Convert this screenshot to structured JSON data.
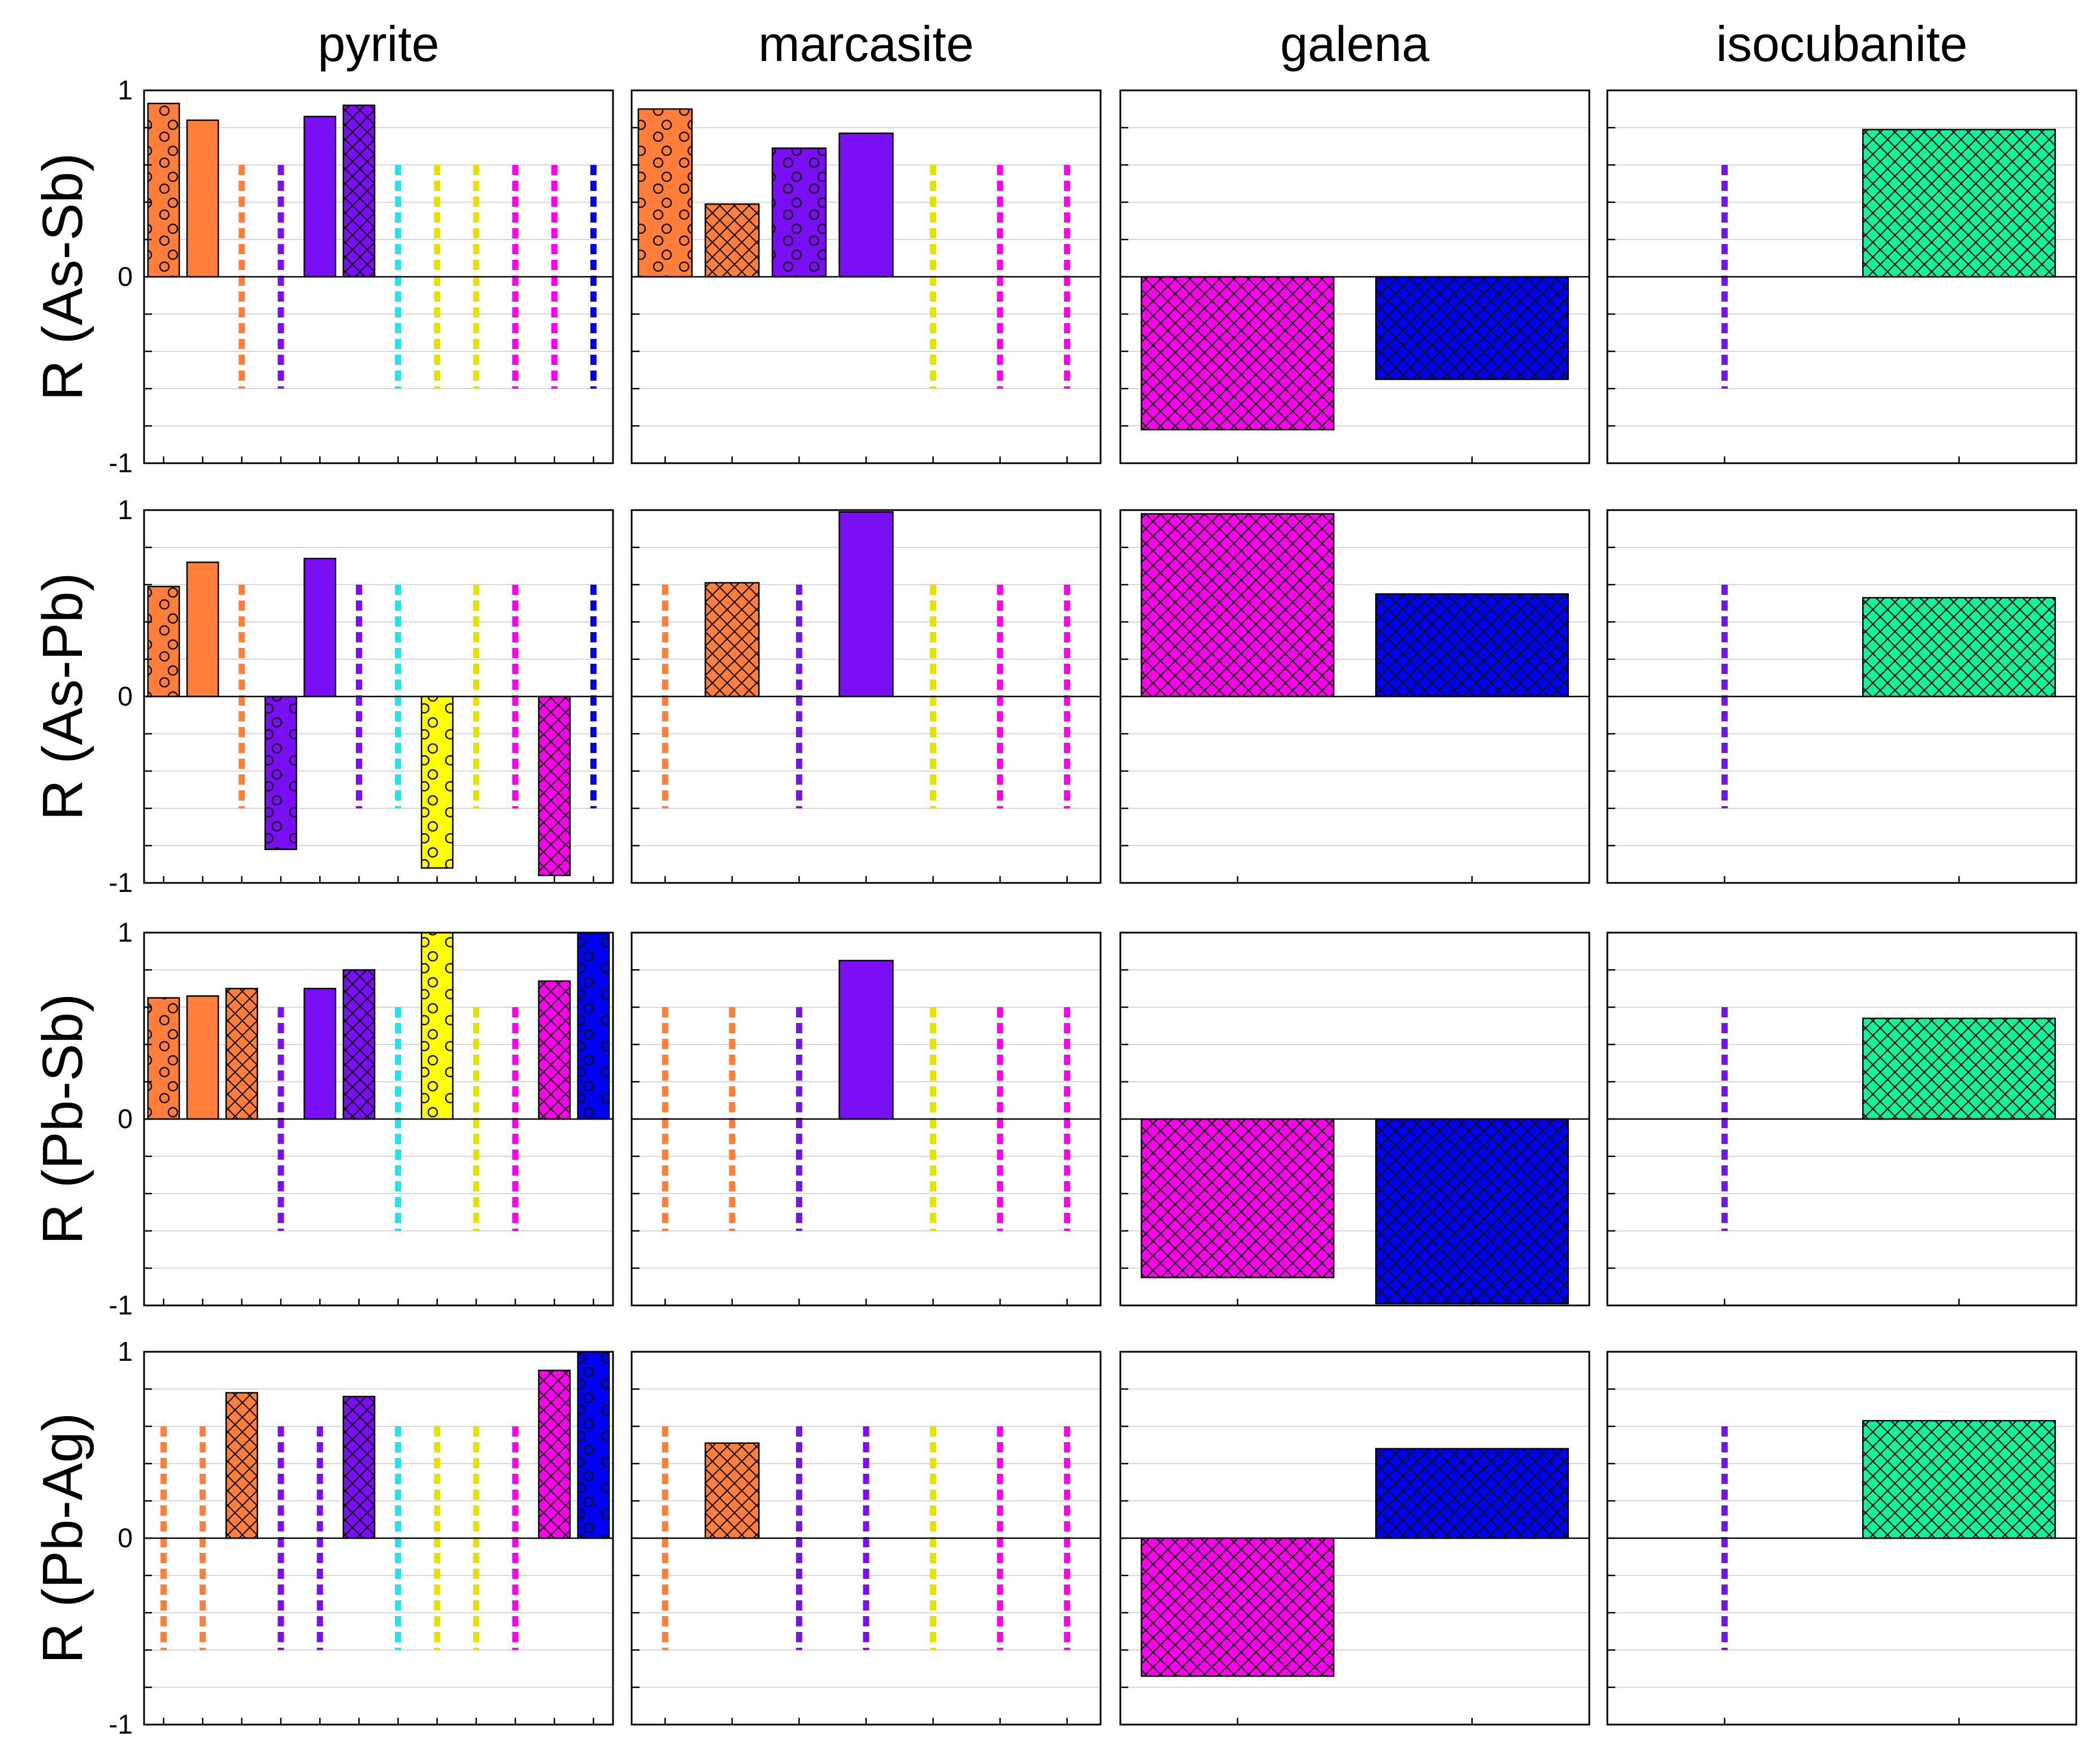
{
  "colors": {
    "orange": "#ff7f3a",
    "purple": "#7a0ef5",
    "cyan": "#19e8f0",
    "yellow": "#e8e000",
    "yellow_fill": "#ffff00",
    "magenta": "#ff00ee",
    "blue": "#0000f5",
    "green": "#12f29a"
  },
  "chart_data": {
    "type": "bar",
    "title": "",
    "ylim": [
      -1,
      1
    ],
    "grid": "horizontal, every 0.2",
    "column_titles": [
      "pyrite",
      "marcasite",
      "galena",
      "isocubanite"
    ],
    "row_labels": [
      "R (As-Sb)",
      "R (As-Pb)",
      "R (Pb-Sb)",
      "R (Pb-Ag)"
    ],
    "y_tick_labels": [
      "1",
      "0",
      "-1"
    ],
    "y_ticks": [
      1,
      0,
      -1
    ],
    "slots_per_column": [
      12,
      7,
      2,
      2
    ],
    "note": "each entry is [slot_index, color, pattern, value]; pattern 'dash' marks a non-significant correlation (dashed line from -0.6 to 0.6)",
    "panels": [
      [
        [
          [
            0,
            "orange",
            "dots",
            0.93
          ],
          [
            1,
            "orange",
            "solid",
            0.84
          ],
          [
            2,
            "orange",
            "dash",
            0
          ],
          [
            3,
            "purple",
            "dash",
            0
          ],
          [
            4,
            "purple",
            "solid",
            0.86
          ],
          [
            5,
            "purple",
            "hatch",
            0.92
          ],
          [
            6,
            "cyan",
            "dash",
            0
          ],
          [
            7,
            "yellow",
            "dash",
            0
          ],
          [
            8,
            "yellow",
            "dash",
            0
          ],
          [
            9,
            "magenta",
            "dash",
            0
          ],
          [
            10,
            "magenta",
            "dash",
            0
          ],
          [
            11,
            "blue",
            "dash",
            0
          ]
        ],
        [
          [
            0,
            "orange",
            "dots",
            0.9
          ],
          [
            1,
            "orange",
            "hatch",
            0.39
          ],
          [
            2,
            "purple",
            "dots",
            0.69
          ],
          [
            3,
            "purple",
            "solid",
            0.77
          ],
          [
            4,
            "yellow",
            "dash",
            0
          ],
          [
            5,
            "magenta",
            "dash",
            0
          ],
          [
            6,
            "magenta",
            "dash",
            0
          ]
        ],
        [
          [
            0,
            "magenta",
            "hatch",
            -0.82
          ],
          [
            1,
            "blue",
            "hatch",
            -0.55
          ]
        ],
        [
          [
            0,
            "purple",
            "dash",
            0
          ],
          [
            1,
            "green",
            "hatch",
            0.79
          ]
        ]
      ],
      [
        [
          [
            0,
            "orange",
            "dots",
            0.59
          ],
          [
            1,
            "orange",
            "solid",
            0.72
          ],
          [
            2,
            "orange",
            "dash",
            0
          ],
          [
            3,
            "purple",
            "dots",
            -0.82
          ],
          [
            4,
            "purple",
            "solid",
            0.74
          ],
          [
            5,
            "purple",
            "dash",
            0
          ],
          [
            6,
            "cyan",
            "dash",
            0
          ],
          [
            7,
            "yellow",
            "dots",
            -0.92
          ],
          [
            8,
            "yellow",
            "dash",
            0
          ],
          [
            9,
            "magenta",
            "dash",
            0
          ],
          [
            10,
            "magenta",
            "hatch",
            -0.96
          ],
          [
            11,
            "blue",
            "dash",
            0
          ]
        ],
        [
          [
            0,
            "orange",
            "dash",
            0
          ],
          [
            1,
            "orange",
            "hatch",
            0.61
          ],
          [
            2,
            "purple",
            "dash",
            0
          ],
          [
            3,
            "purple",
            "solid",
            0.99
          ],
          [
            4,
            "yellow",
            "dash",
            0
          ],
          [
            5,
            "magenta",
            "dash",
            0
          ],
          [
            6,
            "magenta",
            "dash",
            0
          ]
        ],
        [
          [
            0,
            "magenta",
            "hatch",
            0.98
          ],
          [
            1,
            "blue",
            "hatch",
            0.55
          ]
        ],
        [
          [
            0,
            "purple",
            "dash",
            0
          ],
          [
            1,
            "green",
            "hatch",
            0.53
          ]
        ]
      ],
      [
        [
          [
            0,
            "orange",
            "dots",
            0.65
          ],
          [
            1,
            "orange",
            "solid",
            0.66
          ],
          [
            2,
            "orange",
            "hatch",
            0.7
          ],
          [
            3,
            "purple",
            "dash",
            0
          ],
          [
            4,
            "purple",
            "solid",
            0.7
          ],
          [
            5,
            "purple",
            "hatch",
            0.8
          ],
          [
            6,
            "cyan",
            "dash",
            0
          ],
          [
            7,
            "yellow",
            "dots",
            1.0
          ],
          [
            8,
            "yellow",
            "dash",
            0
          ],
          [
            9,
            "magenta",
            "dash",
            0
          ],
          [
            10,
            "magenta",
            "hatch",
            0.74
          ],
          [
            11,
            "blue",
            "dots",
            1.0
          ]
        ],
        [
          [
            0,
            "orange",
            "dash",
            0
          ],
          [
            1,
            "orange",
            "dash",
            0
          ],
          [
            2,
            "purple",
            "dash",
            0
          ],
          [
            3,
            "purple",
            "solid",
            0.85
          ],
          [
            4,
            "yellow",
            "dash",
            0
          ],
          [
            5,
            "magenta",
            "dash",
            0
          ],
          [
            6,
            "magenta",
            "dash",
            0
          ]
        ],
        [
          [
            0,
            "magenta",
            "hatch",
            -0.85
          ],
          [
            1,
            "blue",
            "hatch",
            -0.99
          ]
        ],
        [
          [
            0,
            "purple",
            "dash",
            0
          ],
          [
            1,
            "green",
            "hatch",
            0.54
          ]
        ]
      ],
      [
        [
          [
            0,
            "orange",
            "dash",
            0
          ],
          [
            1,
            "orange",
            "dash",
            0
          ],
          [
            2,
            "orange",
            "hatch",
            0.78
          ],
          [
            3,
            "purple",
            "dash",
            0
          ],
          [
            4,
            "purple",
            "dash",
            0
          ],
          [
            5,
            "purple",
            "hatch",
            0.76
          ],
          [
            6,
            "cyan",
            "dash",
            0
          ],
          [
            7,
            "yellow",
            "dash",
            0
          ],
          [
            8,
            "yellow",
            "dash",
            0
          ],
          [
            9,
            "magenta",
            "dash",
            0
          ],
          [
            10,
            "magenta",
            "hatch",
            0.9
          ],
          [
            11,
            "blue",
            "dots",
            1.0
          ]
        ],
        [
          [
            0,
            "orange",
            "dash",
            0
          ],
          [
            1,
            "orange",
            "hatch",
            0.51
          ],
          [
            2,
            "purple",
            "dash",
            0
          ],
          [
            3,
            "purple",
            "dash",
            0
          ],
          [
            4,
            "yellow",
            "dash",
            0
          ],
          [
            5,
            "magenta",
            "dash",
            0
          ],
          [
            6,
            "magenta",
            "dash",
            0
          ]
        ],
        [
          [
            0,
            "magenta",
            "hatch",
            -0.74
          ],
          [
            1,
            "blue",
            "hatch",
            0.48
          ]
        ],
        [
          [
            0,
            "purple",
            "dash",
            0
          ],
          [
            1,
            "green",
            "hatch",
            0.63
          ]
        ]
      ]
    ]
  }
}
